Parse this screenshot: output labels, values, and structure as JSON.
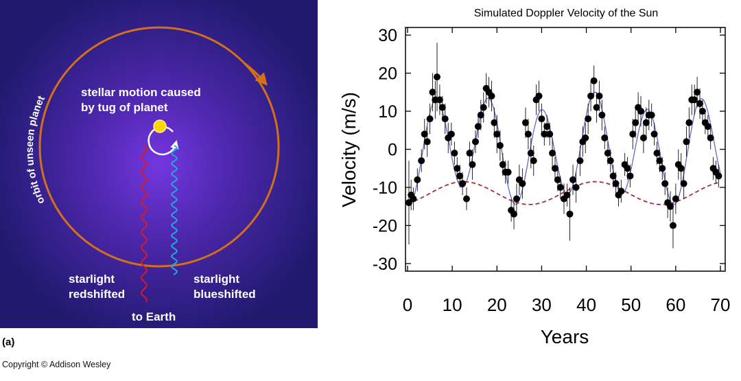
{
  "panel_a": {
    "orbit_label": "orbit of unseen planet",
    "motion_label_line1": "stellar motion caused",
    "motion_label_line2": "by tug of planet",
    "redshift_line1": "starlight",
    "redshift_line2": "redshifted",
    "blueshift_line1": "starlight",
    "blueshift_line2": "blueshifted",
    "earth_label": "to Earth",
    "panel_letter": "(a)",
    "colors": {
      "background": "#2a1f7a",
      "glow": "#6a34d6",
      "orbit": "#d4701a",
      "sun": "#ffd400",
      "red_wave": "#e01818",
      "blue_wave": "#21a7e0"
    }
  },
  "copyright": "Copyright © Addison Wesley",
  "chart_data": {
    "type": "scatter",
    "title": "Simulated Doppler Velocity of the Sun",
    "xlabel": "Years",
    "ylabel": "Velocity (m/s)",
    "xlim": [
      0,
      70
    ],
    "ylim": [
      -32,
      32
    ],
    "x_ticks": [
      "0",
      "10",
      "20",
      "30",
      "40",
      "50",
      "60",
      "70"
    ],
    "y_ticks": [
      "30",
      "20",
      "10",
      "0",
      "-10",
      "-20",
      "-30"
    ],
    "points": [
      {
        "x": 0.3,
        "y": -14,
        "err": 11
      },
      {
        "x": 0.8,
        "y": -12,
        "err": 4
      },
      {
        "x": 1.3,
        "y": -13,
        "err": 3
      },
      {
        "x": 2.2,
        "y": -8,
        "err": 3
      },
      {
        "x": 3.1,
        "y": -3,
        "err": 3
      },
      {
        "x": 3.8,
        "y": 4,
        "err": 4
      },
      {
        "x": 4.4,
        "y": 2,
        "err": 4
      },
      {
        "x": 5.0,
        "y": 8,
        "err": 4
      },
      {
        "x": 5.6,
        "y": 15,
        "err": 5
      },
      {
        "x": 6.2,
        "y": 13,
        "err": 5
      },
      {
        "x": 6.6,
        "y": 19,
        "err": 9
      },
      {
        "x": 7.2,
        "y": 13,
        "err": 4
      },
      {
        "x": 7.8,
        "y": 11,
        "err": 3
      },
      {
        "x": 8.4,
        "y": 8,
        "err": 4
      },
      {
        "x": 9.1,
        "y": 3,
        "err": 4
      },
      {
        "x": 9.8,
        "y": 4,
        "err": 3
      },
      {
        "x": 10.5,
        "y": -1,
        "err": 3
      },
      {
        "x": 11.1,
        "y": -5,
        "err": 3
      },
      {
        "x": 11.7,
        "y": -7,
        "err": 3
      },
      {
        "x": 12.3,
        "y": -9,
        "err": 3
      },
      {
        "x": 13.2,
        "y": -13,
        "err": 3
      },
      {
        "x": 13.9,
        "y": -1,
        "err": 3
      },
      {
        "x": 14.5,
        "y": -4,
        "err": 4
      },
      {
        "x": 15.2,
        "y": 2,
        "err": 3
      },
      {
        "x": 15.8,
        "y": 6,
        "err": 3
      },
      {
        "x": 16.4,
        "y": 9,
        "err": 4
      },
      {
        "x": 17.0,
        "y": 11,
        "err": 4
      },
      {
        "x": 17.6,
        "y": 16,
        "err": 4
      },
      {
        "x": 18.2,
        "y": 15,
        "err": 4
      },
      {
        "x": 18.8,
        "y": 14,
        "err": 4
      },
      {
        "x": 19.4,
        "y": 7,
        "err": 4
      },
      {
        "x": 20.0,
        "y": 4,
        "err": 5
      },
      {
        "x": 20.7,
        "y": 1,
        "err": 4
      },
      {
        "x": 21.3,
        "y": -4,
        "err": 3
      },
      {
        "x": 21.9,
        "y": -6,
        "err": 3
      },
      {
        "x": 22.5,
        "y": -6,
        "err": 3
      },
      {
        "x": 23.2,
        "y": -16,
        "err": 3
      },
      {
        "x": 23.8,
        "y": -17,
        "err": 4
      },
      {
        "x": 24.4,
        "y": -13,
        "err": 4
      },
      {
        "x": 25.0,
        "y": -8,
        "err": 4
      },
      {
        "x": 25.7,
        "y": -9,
        "err": 4
      },
      {
        "x": 26.4,
        "y": 7,
        "err": 4
      },
      {
        "x": 27.0,
        "y": 4,
        "err": 4
      },
      {
        "x": 27.6,
        "y": -1,
        "err": 4
      },
      {
        "x": 28.2,
        "y": -3,
        "err": 4
      },
      {
        "x": 28.8,
        "y": 13,
        "err": 4
      },
      {
        "x": 29.4,
        "y": 14,
        "err": 4
      },
      {
        "x": 30.0,
        "y": 8,
        "err": 4
      },
      {
        "x": 30.6,
        "y": 4,
        "err": 3
      },
      {
        "x": 31.2,
        "y": 6,
        "err": 3
      },
      {
        "x": 31.8,
        "y": 4,
        "err": 3
      },
      {
        "x": 32.4,
        "y": -1,
        "err": 4
      },
      {
        "x": 33.0,
        "y": -5,
        "err": 3
      },
      {
        "x": 33.6,
        "y": -8,
        "err": 3
      },
      {
        "x": 34.2,
        "y": -10,
        "err": 3
      },
      {
        "x": 35.0,
        "y": -13,
        "err": 4
      },
      {
        "x": 35.7,
        "y": -12,
        "err": 3
      },
      {
        "x": 36.3,
        "y": -17,
        "err": 7
      },
      {
        "x": 37.0,
        "y": -8,
        "err": 4
      },
      {
        "x": 37.7,
        "y": -10,
        "err": 4
      },
      {
        "x": 38.6,
        "y": -3,
        "err": 4
      },
      {
        "x": 39.2,
        "y": 2,
        "err": 4
      },
      {
        "x": 39.8,
        "y": 3,
        "err": 4
      },
      {
        "x": 40.4,
        "y": 8,
        "err": 4
      },
      {
        "x": 41.0,
        "y": 14,
        "err": 4
      },
      {
        "x": 41.7,
        "y": 18,
        "err": 4
      },
      {
        "x": 42.3,
        "y": 11,
        "err": 4
      },
      {
        "x": 42.9,
        "y": 14,
        "err": 4
      },
      {
        "x": 43.5,
        "y": 9,
        "err": 4
      },
      {
        "x": 44.1,
        "y": 3,
        "err": 3
      },
      {
        "x": 44.8,
        "y": -1,
        "err": 3
      },
      {
        "x": 45.4,
        "y": -3,
        "err": 3
      },
      {
        "x": 46.0,
        "y": -7,
        "err": 3
      },
      {
        "x": 46.6,
        "y": -9,
        "err": 3
      },
      {
        "x": 47.2,
        "y": -12,
        "err": 3
      },
      {
        "x": 47.8,
        "y": -11,
        "err": 3
      },
      {
        "x": 48.6,
        "y": -4,
        "err": 3
      },
      {
        "x": 49.2,
        "y": -5,
        "err": 3
      },
      {
        "x": 49.8,
        "y": -7,
        "err": 3
      },
      {
        "x": 50.4,
        "y": 4,
        "err": 4
      },
      {
        "x": 51.0,
        "y": 7,
        "err": 4
      },
      {
        "x": 51.6,
        "y": 11,
        "err": 4
      },
      {
        "x": 52.2,
        "y": 10,
        "err": 4
      },
      {
        "x": 52.8,
        "y": 3,
        "err": 4
      },
      {
        "x": 53.4,
        "y": 7,
        "err": 4
      },
      {
        "x": 54.0,
        "y": 9,
        "err": 4
      },
      {
        "x": 54.6,
        "y": 9,
        "err": 3
      },
      {
        "x": 55.2,
        "y": 4,
        "err": 3
      },
      {
        "x": 55.8,
        "y": -1,
        "err": 3
      },
      {
        "x": 56.4,
        "y": -3,
        "err": 3
      },
      {
        "x": 57.0,
        "y": -5,
        "err": 3
      },
      {
        "x": 57.6,
        "y": -9,
        "err": 3
      },
      {
        "x": 58.2,
        "y": -14,
        "err": 4
      },
      {
        "x": 58.8,
        "y": -15,
        "err": 4
      },
      {
        "x": 59.4,
        "y": -20,
        "err": 6
      },
      {
        "x": 60.0,
        "y": -13,
        "err": 4
      },
      {
        "x": 60.6,
        "y": -4,
        "err": 4
      },
      {
        "x": 61.2,
        "y": -5,
        "err": 4
      },
      {
        "x": 61.8,
        "y": -9,
        "err": 4
      },
      {
        "x": 62.4,
        "y": 2,
        "err": 4
      },
      {
        "x": 63.0,
        "y": 7,
        "err": 4
      },
      {
        "x": 63.6,
        "y": 13,
        "err": 4
      },
      {
        "x": 64.2,
        "y": 13,
        "err": 4
      },
      {
        "x": 64.8,
        "y": 15,
        "err": 4
      },
      {
        "x": 65.4,
        "y": 12,
        "err": 4
      },
      {
        "x": 66.0,
        "y": 10,
        "err": 3
      },
      {
        "x": 66.6,
        "y": 7,
        "err": 3
      },
      {
        "x": 67.2,
        "y": 6,
        "err": 3
      },
      {
        "x": 67.8,
        "y": 3,
        "err": 3
      },
      {
        "x": 68.4,
        "y": -5,
        "err": 3
      },
      {
        "x": 69.0,
        "y": -6,
        "err": 3
      },
      {
        "x": 69.6,
        "y": -7,
        "err": 3
      }
    ],
    "fit_curve": {
      "type": "solid",
      "color": "#6a6fd0",
      "period": 11.86,
      "amplitude": 12.5,
      "offset": 0,
      "phase_peak": 6.3,
      "slow_amplitude": 2.5,
      "slow_period": 29.5,
      "slow_phase_peak": 42
    },
    "saturn_curve": {
      "type": "dashed",
      "color": "#a03040",
      "period": 29.5,
      "amplitude": 3,
      "offset": -11.5,
      "phase_peak": 12.5
    },
    "grid": false
  }
}
